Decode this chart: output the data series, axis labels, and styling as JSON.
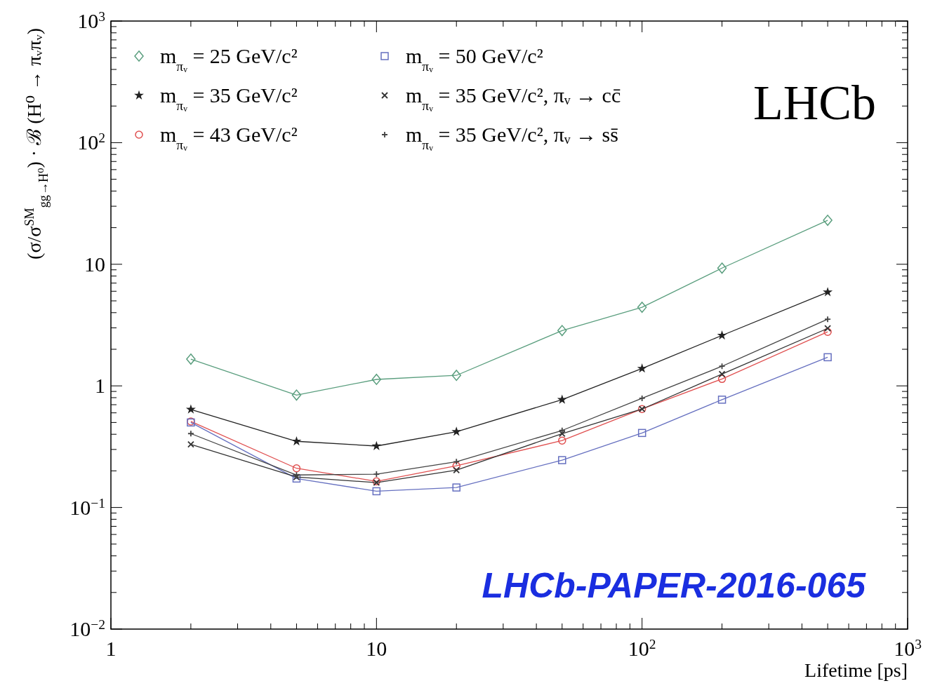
{
  "chart_data": {
    "type": "line",
    "xlabel": "Lifetime [ps]",
    "ylabel": "(σ/σ$^{SM}$$_{gg→H⁰}$) · ℬ (H⁰ → πᵥπᵥ)",
    "log": "xy",
    "legend": "top left",
    "xlim": [
      1,
      1000
    ],
    "ylim": [
      0.01,
      1000
    ],
    "xticks": [
      1,
      {
        "value": 2,
        "label": null
      },
      {
        "value": 3,
        "label": null
      },
      {
        "value": 4,
        "label": null
      },
      {
        "value": 5,
        "label": null
      },
      {
        "value": 6,
        "label": null
      },
      {
        "value": 7,
        "label": null
      },
      {
        "value": 8,
        "label": null
      },
      {
        "value": 9,
        "label": null
      },
      10,
      {
        "value": 20,
        "label": null
      },
      {
        "value": 30,
        "label": null
      },
      {
        "value": 40,
        "label": null
      },
      {
        "value": 50,
        "label": null
      },
      {
        "value": 60,
        "label": null
      },
      {
        "value": 70,
        "label": null
      },
      {
        "value": 80,
        "label": null
      },
      {
        "value": 90,
        "label": null
      },
      {
        "value": 100,
        "label": "10$^{2}$"
      },
      {
        "value": 200,
        "label": null
      },
      {
        "value": 300,
        "label": null
      },
      {
        "value": 400,
        "label": null
      },
      {
        "value": 500,
        "label": null
      },
      {
        "value": 600,
        "label": null
      },
      {
        "value": 700,
        "label": null
      },
      {
        "value": 800,
        "label": null
      },
      {
        "value": 900,
        "label": null
      },
      {
        "value": 1000,
        "label": "10$^{3}$"
      }
    ],
    "yticks": [
      {
        "value": 0.01,
        "label": "10$^{−2}$"
      },
      {
        "value": 0.02,
        "label": null
      },
      {
        "value": 0.03,
        "label": null
      },
      {
        "value": 0.04,
        "label": null
      },
      {
        "value": 0.05,
        "label": null
      },
      {
        "value": 0.06,
        "label": null
      },
      {
        "value": 0.07,
        "label": null
      },
      {
        "value": 0.08,
        "label": null
      },
      {
        "value": 0.09,
        "label": null
      },
      {
        "value": 0.1,
        "label": "10$^{−1}$"
      },
      {
        "value": 0.2,
        "label": null
      },
      {
        "value": 0.3,
        "label": null
      },
      {
        "value": 0.4,
        "label": null
      },
      {
        "value": 0.5,
        "label": null
      },
      {
        "value": 0.6,
        "label": null
      },
      {
        "value": 0.7,
        "label": null
      },
      {
        "value": 0.8,
        "label": null
      },
      {
        "value": 0.9,
        "label": null
      },
      1,
      {
        "value": 2,
        "label": null
      },
      {
        "value": 3,
        "label": null
      },
      {
        "value": 4,
        "label": null
      },
      {
        "value": 5,
        "label": null
      },
      {
        "value": 6,
        "label": null
      },
      {
        "value": 7,
        "label": null
      },
      {
        "value": 8,
        "label": null
      },
      {
        "value": 9,
        "label": null
      },
      10,
      {
        "value": 20,
        "label": null
      },
      {
        "value": 30,
        "label": null
      },
      {
        "value": 40,
        "label": null
      },
      {
        "value": 50,
        "label": null
      },
      {
        "value": 60,
        "label": null
      },
      {
        "value": 70,
        "label": null
      },
      {
        "value": 80,
        "label": null
      },
      {
        "value": 90,
        "label": null
      },
      {
        "value": 100,
        "label": "10$^{2}$"
      },
      {
        "value": 200,
        "label": null
      },
      {
        "value": 300,
        "label": null
      },
      {
        "value": 400,
        "label": null
      },
      {
        "value": 500,
        "label": null
      },
      {
        "value": 600,
        "label": null
      },
      {
        "value": 700,
        "label": null
      },
      {
        "value": 800,
        "label": null
      },
      {
        "value": 900,
        "label": null
      },
      {
        "value": 1000,
        "label": "10$^{3}$"
      }
    ],
    "x": [
      2,
      5,
      10,
      20,
      50,
      100,
      200,
      500
    ],
    "series": [
      {
        "name": "m$_{πᵥ}$ = 25 GeV/c²",
        "color": "#5a9e7e",
        "marker": "diamond",
        "values": [
          1.66,
          0.84,
          1.13,
          1.22,
          2.85,
          4.43,
          9.3,
          23
        ]
      },
      {
        "name": "m$_{πᵥ}$ = 35 GeV/c²",
        "color": "#222222",
        "marker": "star",
        "values": [
          0.64,
          0.35,
          0.32,
          0.42,
          0.77,
          1.39,
          2.6,
          5.9
        ]
      },
      {
        "name": "m$_{πᵥ}$ = 43 GeV/c²",
        "color": "#e05050",
        "marker": "circle",
        "values": [
          0.51,
          0.21,
          0.164,
          0.22,
          0.355,
          0.645,
          1.14,
          2.78
        ]
      },
      {
        "name": "m$_{πᵥ}$ = 50 GeV/c²",
        "color": "#6670c0",
        "marker": "square",
        "values": [
          0.5,
          0.173,
          0.136,
          0.146,
          0.245,
          0.41,
          0.77,
          1.72
        ]
      },
      {
        "name": "m$_{πᵥ}$ = 35 GeV/c², πᵥ → cc̄",
        "color": "#333333",
        "marker": "x",
        "values": [
          0.33,
          0.178,
          0.16,
          0.203,
          0.405,
          0.645,
          1.25,
          2.97
        ]
      },
      {
        "name": "m$_{πᵥ}$ = 35 GeV/c², πᵥ → ss̄",
        "color": "#444444",
        "marker": "cross",
        "values": [
          0.405,
          0.185,
          0.188,
          0.238,
          0.43,
          0.79,
          1.45,
          3.53
        ]
      }
    ],
    "annotations": [
      "LHCb",
      "LHCb-PAPER-2016-065"
    ]
  }
}
